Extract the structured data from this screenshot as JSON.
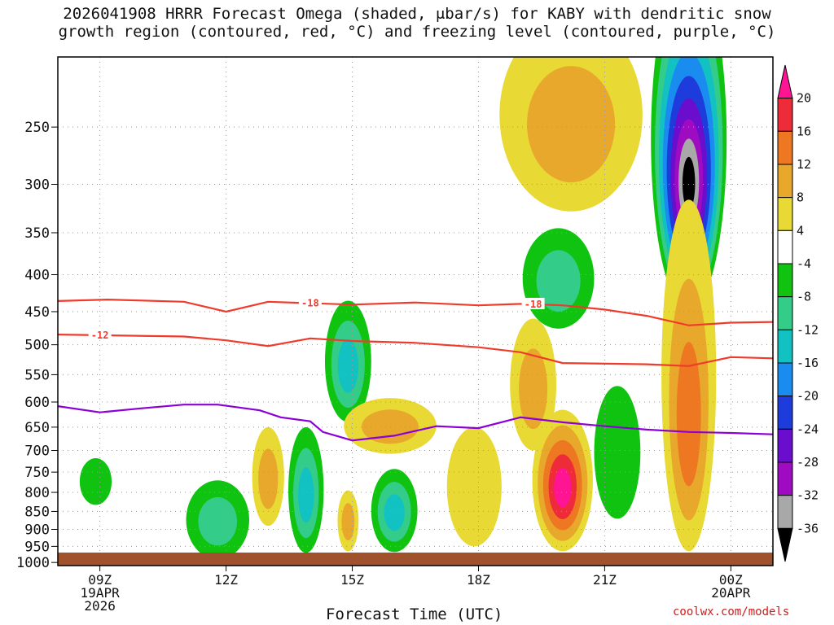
{
  "title_line1": "2026041908 HRRR Forecast Omega (shaded, μbar/s) for KABY with dendritic snow",
  "title_line2": "growth region (contoured, red, °C) and freezing level (contoured, purple, °C)",
  "credit": "coolwx.com/models",
  "chart_data": {
    "type": "heatmap",
    "xlabel": "Forecast Time (UTC)",
    "ylabel": "",
    "x_ticks": [
      {
        "t": 9,
        "lines": [
          "09Z",
          "19APR",
          "2026"
        ]
      },
      {
        "t": 12,
        "lines": [
          "12Z"
        ]
      },
      {
        "t": 15,
        "lines": [
          "15Z"
        ]
      },
      {
        "t": 18,
        "lines": [
          "18Z"
        ]
      },
      {
        "t": 21,
        "lines": [
          "21Z"
        ]
      },
      {
        "t": 24,
        "lines": [
          "00Z",
          "20APR"
        ]
      }
    ],
    "xlim": [
      8.0,
      25.0
    ],
    "y_ticks": [
      250,
      300,
      350,
      400,
      450,
      500,
      550,
      600,
      650,
      700,
      750,
      800,
      850,
      900,
      950,
      1000
    ],
    "ylim_hPa": [
      1010,
      200
    ],
    "colorbar": {
      "labels": [
        "20",
        "16",
        "12",
        "8",
        "4",
        "-4",
        "-8",
        "-12",
        "-16",
        "-20",
        "-24",
        "-28",
        "-32",
        "-36"
      ],
      "colors": [
        "#ff1493",
        "#ee2b38",
        "#ee7722",
        "#e8a82b",
        "#e8d934",
        "#ffffff",
        "#11c311",
        "#33cc88",
        "#12c1c1",
        "#1a8cf0",
        "#1d3cdb",
        "#6a0dcc",
        "#9e0bc0",
        "#a8a8a8",
        "#000000"
      ]
    },
    "contours": [
      {
        "label": "-18",
        "color": "#ef3b2c",
        "points": [
          [
            8,
            435
          ],
          [
            9.2,
            433
          ],
          [
            11,
            436
          ],
          [
            12,
            450
          ],
          [
            13,
            436
          ],
          [
            15,
            440
          ],
          [
            16.5,
            437
          ],
          [
            18,
            441
          ],
          [
            19,
            439
          ],
          [
            20,
            441
          ],
          [
            21,
            447
          ],
          [
            22,
            456
          ],
          [
            23,
            470
          ],
          [
            24,
            466
          ],
          [
            25,
            465
          ]
        ]
      },
      {
        "label": "-12",
        "color": "#ef3b2c",
        "points": [
          [
            8,
            484
          ],
          [
            9,
            485
          ],
          [
            11,
            487
          ],
          [
            12,
            493
          ],
          [
            13,
            502
          ],
          [
            14,
            490
          ],
          [
            15,
            494
          ],
          [
            16.5,
            497
          ],
          [
            18,
            504
          ],
          [
            19,
            512
          ],
          [
            20,
            530
          ],
          [
            22,
            532
          ],
          [
            23,
            535
          ],
          [
            24,
            520
          ],
          [
            25,
            522
          ]
        ]
      },
      {
        "label": "",
        "color": "#8b00d8",
        "points": [
          [
            8,
            608
          ],
          [
            9,
            620
          ],
          [
            10,
            612
          ],
          [
            11,
            605
          ],
          [
            11.8,
            605
          ],
          [
            12.8,
            616
          ],
          [
            13.3,
            630
          ],
          [
            14,
            638
          ],
          [
            14.3,
            660
          ],
          [
            15,
            678
          ],
          [
            16,
            668
          ],
          [
            17,
            648
          ],
          [
            18,
            652
          ],
          [
            19,
            630
          ],
          [
            20,
            640
          ],
          [
            21,
            648
          ],
          [
            22,
            655
          ],
          [
            23,
            660
          ],
          [
            24,
            662
          ],
          [
            25,
            665
          ]
        ]
      }
    ],
    "omega_blobs": [
      {
        "t": 8.9,
        "p": 775,
        "levels": [
          -4
        ],
        "w": 0.38,
        "h": 115
      },
      {
        "t": 11.8,
        "p": 880,
        "levels": [
          -4,
          -8
        ],
        "w": 0.75,
        "h": 220
      },
      {
        "t": 13.0,
        "p": 770,
        "levels": [
          4,
          8
        ],
        "w": 0.38,
        "h": 240
      },
      {
        "t": 13.9,
        "p": 810,
        "levels": [
          -4,
          -8,
          -12
        ],
        "w": 0.42,
        "h": 320
      },
      {
        "t": 14.9,
        "p": 537,
        "levels": [
          -4,
          -8,
          -12
        ],
        "w": 0.55,
        "h": 205
      },
      {
        "t": 14.9,
        "p": 880,
        "levels": [
          4,
          8
        ],
        "w": 0.25,
        "h": 170
      },
      {
        "t": 16.0,
        "p": 855,
        "levels": [
          -4,
          -8,
          -12
        ],
        "w": 0.55,
        "h": 225
      },
      {
        "t": 15.9,
        "p": 650,
        "levels": [
          4,
          8
        ],
        "w": 1.1,
        "h": 115
      },
      {
        "t": 17.9,
        "p": 800,
        "levels": [
          4
        ],
        "w": 0.65,
        "h": 300
      },
      {
        "t": 19.3,
        "p": 580,
        "levels": [
          4,
          8
        ],
        "w": 0.55,
        "h": 240
      },
      {
        "t": 20.0,
        "p": 790,
        "levels": [
          4,
          8,
          12,
          16,
          20
        ],
        "w": 0.72,
        "h": 350
      },
      {
        "t": 19.9,
        "p": 410,
        "levels": [
          -4,
          -8
        ],
        "w": 0.85,
        "h": 130
      },
      {
        "t": 20.2,
        "p": 252,
        "levels": [
          4,
          8
        ],
        "w": 1.7,
        "h": 150
      },
      {
        "t": 21.3,
        "p": 720,
        "levels": [
          -4
        ],
        "w": 0.55,
        "h": 300
      },
      {
        "t": 23.0,
        "p": 300,
        "levels": [
          -4,
          -8,
          -12,
          -16,
          -20,
          -24,
          -28,
          -32,
          -36
        ],
        "w": 0.9,
        "h": 300
      },
      {
        "t": 23.0,
        "p": 640,
        "levels": [
          4,
          8,
          12
        ],
        "w": 0.65,
        "h": 650
      }
    ]
  }
}
